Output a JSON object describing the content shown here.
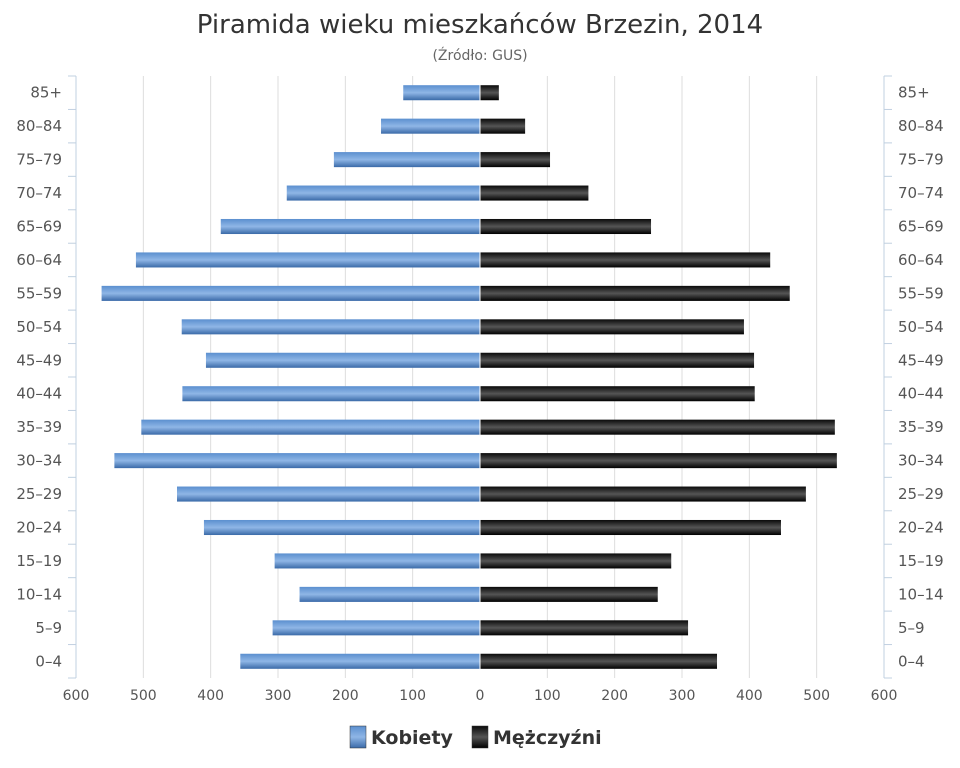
{
  "chart_data": {
    "type": "bar",
    "orientation": "horizontal",
    "title": "Piramida wieku mieszkańców Brzezin, 2014",
    "subtitle": "(Źródło: GUS)",
    "categories": [
      "85+",
      "80–84",
      "75–79",
      "70–74",
      "65–69",
      "60–64",
      "55–59",
      "50–54",
      "45–49",
      "40–44",
      "35–39",
      "30–34",
      "25–29",
      "20–24",
      "15–19",
      "10–14",
      "5–9",
      "0–4"
    ],
    "series": [
      {
        "name": "Kobiety",
        "color": "#4a7fbd",
        "side": "left",
        "values": [
          114,
          147,
          217,
          287,
          385,
          511,
          562,
          443,
          407,
          442,
          503,
          543,
          450,
          410,
          305,
          268,
          308,
          356
        ]
      },
      {
        "name": "Mężczyźni",
        "color": "#1a1a1a",
        "side": "right",
        "values": [
          28,
          67,
          104,
          161,
          254,
          431,
          460,
          392,
          407,
          408,
          527,
          530,
          484,
          447,
          284,
          264,
          309,
          352
        ]
      }
    ],
    "x_ticks": [
      "600",
      "500",
      "400",
      "300",
      "200",
      "100",
      "0",
      "100",
      "200",
      "300",
      "400",
      "500",
      "600"
    ],
    "xlim": [
      -600,
      600
    ],
    "grid": true,
    "legend_position": "bottom"
  }
}
